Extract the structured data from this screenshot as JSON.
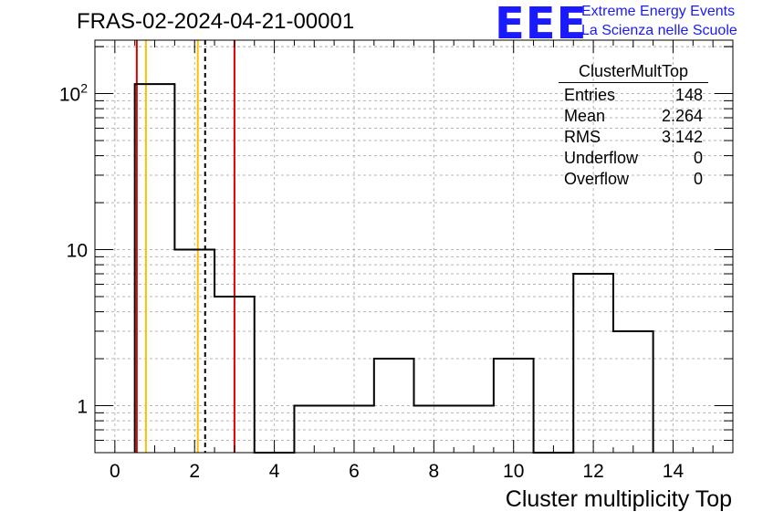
{
  "header": {
    "run_title": "FRAS-02-2024-04-21-00001",
    "logo_text": "EEE",
    "logo_line1": "Extreme Energy Events",
    "logo_line2": "La Scienza nelle Scuole",
    "logo_color": "#1a1aff"
  },
  "stats": {
    "title": "ClusterMultTop",
    "rows": [
      {
        "label": "Entries",
        "value": "148"
      },
      {
        "label": "Mean",
        "value": "2.264"
      },
      {
        "label": "RMS",
        "value": "3.142"
      },
      {
        "label": "Underflow",
        "value": "0"
      },
      {
        "label": "Overflow",
        "value": "0"
      }
    ]
  },
  "chart_data": {
    "type": "bar",
    "style": "step-histogram",
    "xlabel": "Cluster multiplicity Top",
    "ylabel": "",
    "xlim": [
      -0.5,
      15.5
    ],
    "ylim": [
      0.5,
      220
    ],
    "log_y": true,
    "grid": true,
    "x_ticks": [
      0,
      2,
      4,
      6,
      8,
      10,
      12,
      14
    ],
    "x_tick_labels": [
      "0",
      "2",
      "4",
      "6",
      "8",
      "10",
      "12",
      "14"
    ],
    "y_ticks": [
      1,
      10,
      100
    ],
    "y_tick_labels": [
      "1",
      "10",
      "10²"
    ],
    "bin_width": 1,
    "bin_centers": [
      1,
      2,
      3,
      4,
      5,
      6,
      7,
      8,
      9,
      10,
      11,
      12,
      13
    ],
    "values": [
      115,
      10,
      5,
      0,
      1,
      1,
      2,
      1,
      1,
      2,
      0,
      7,
      3
    ],
    "line_color": "#000000",
    "markers": [
      {
        "kind": "red",
        "x": 0.55,
        "color": "#e00000",
        "dash": false
      },
      {
        "kind": "orange",
        "x": 0.78,
        "color": "#ffbf00",
        "dash": false
      },
      {
        "kind": "orange",
        "x": 2.08,
        "color": "#ffbf00",
        "dash": false
      },
      {
        "kind": "mean",
        "x": 2.264,
        "color": "#000000",
        "dash": true
      },
      {
        "kind": "red",
        "x": 3.0,
        "color": "#e00000",
        "dash": false
      }
    ]
  }
}
